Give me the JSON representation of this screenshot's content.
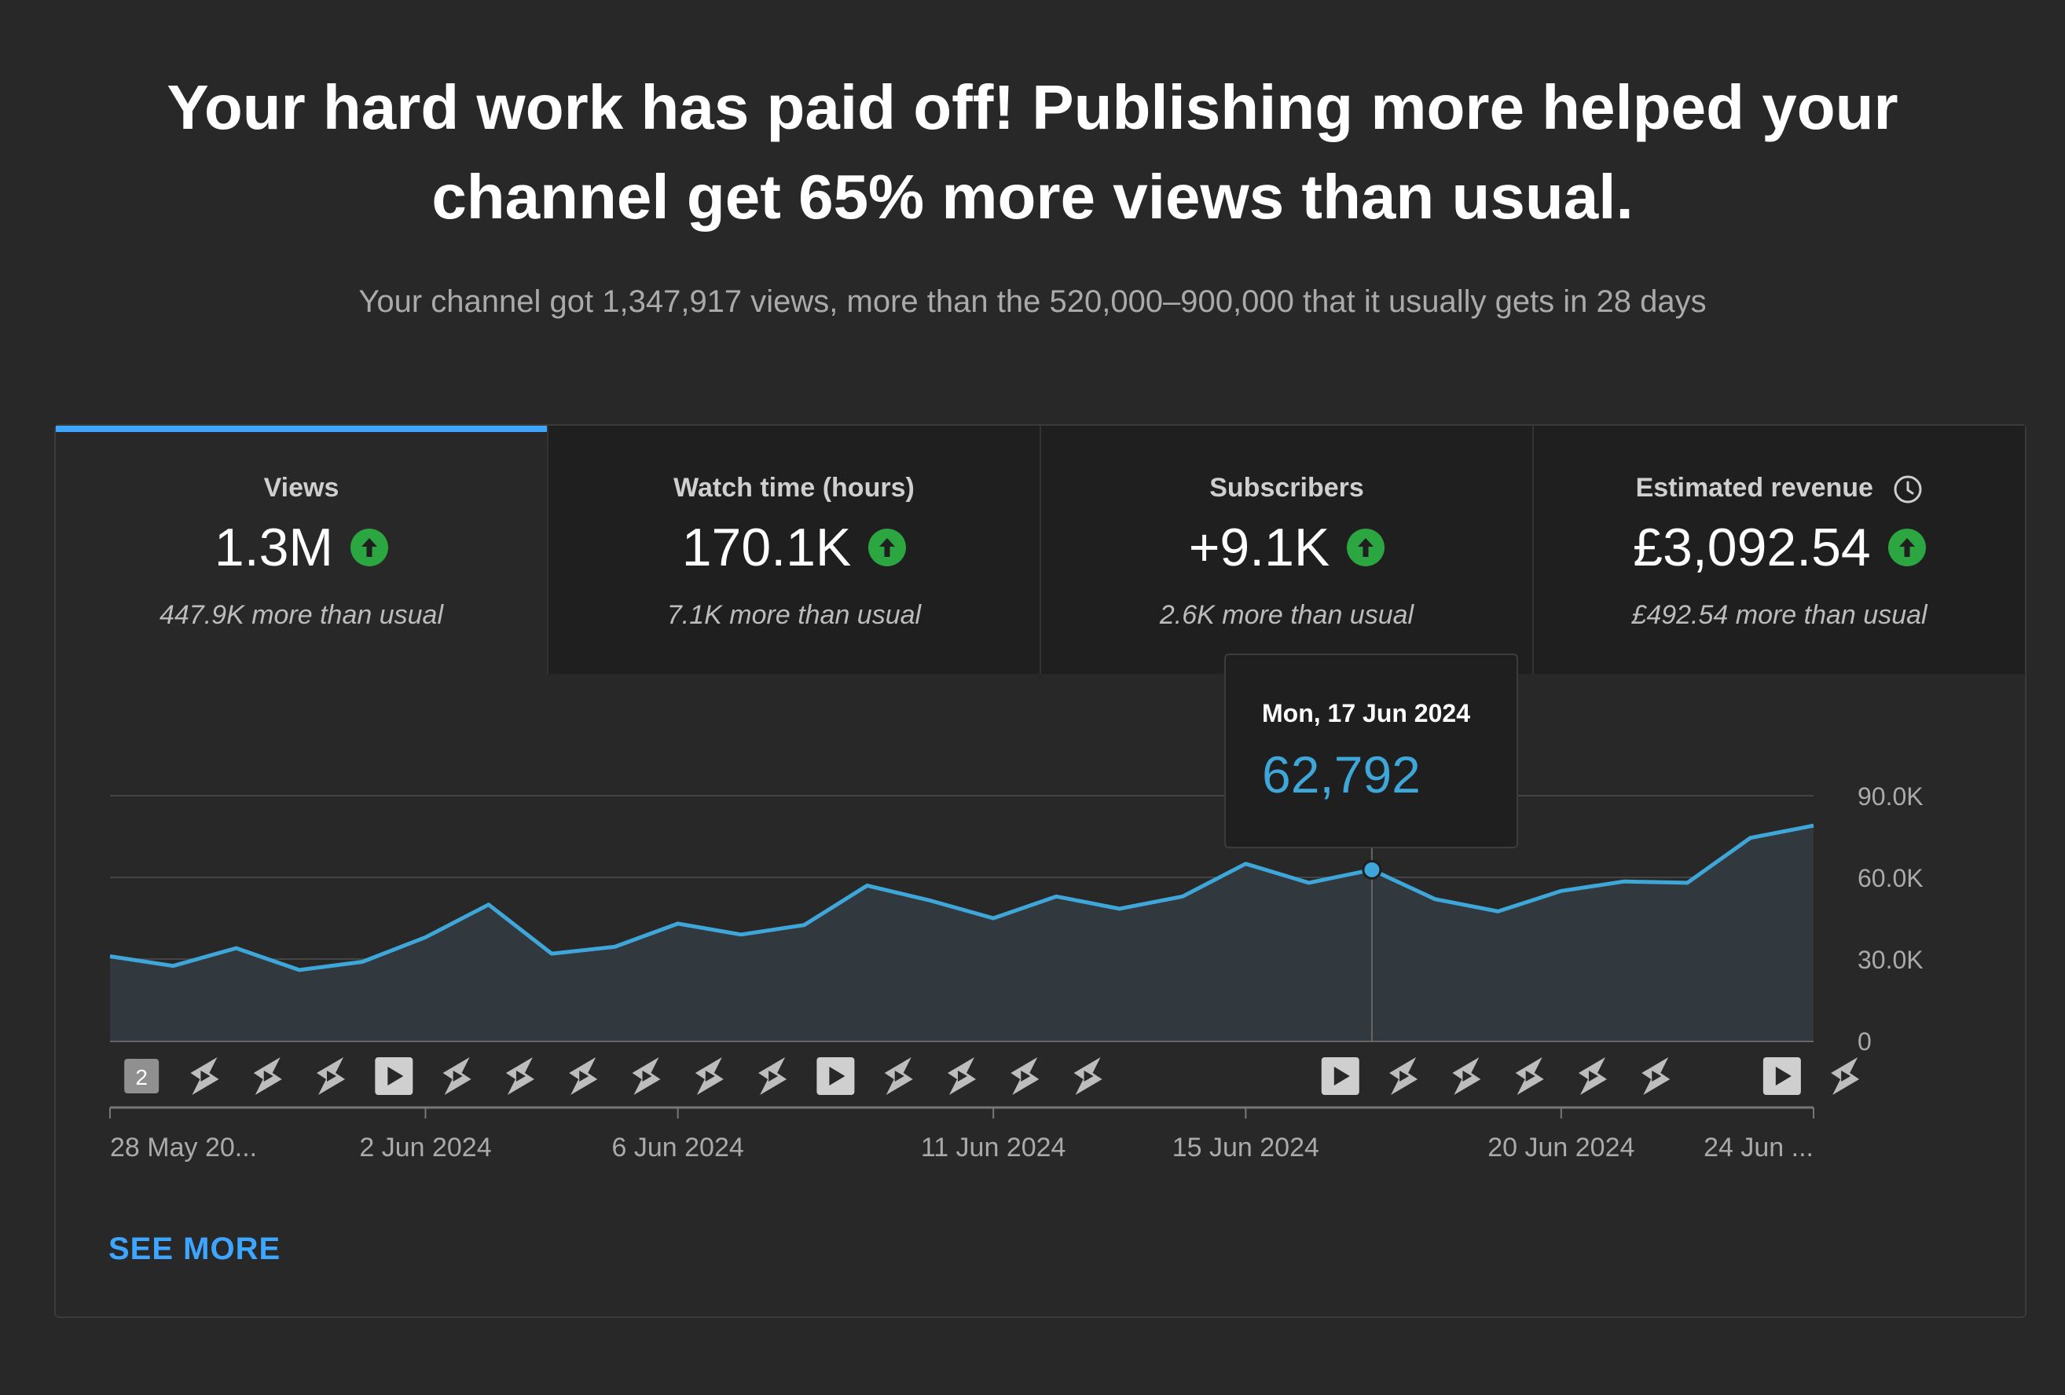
{
  "headline": {
    "line1": "Your hard work has paid off! Publishing more helped your",
    "line2": "channel get 65% more views than usual."
  },
  "subline": "Your channel got 1,347,917 views, more than the 520,000–900,000 that it usually gets in 28 days",
  "tabs": [
    {
      "label": "Views",
      "value": "1.3M",
      "delta": "447.9K more than usual",
      "active": true
    },
    {
      "label": "Watch time (hours)",
      "value": "170.1K",
      "delta": "7.1K more than usual",
      "active": false
    },
    {
      "label": "Subscribers",
      "value": "+9.1K",
      "delta": "2.6K more than usual",
      "active": false
    },
    {
      "label": "Estimated revenue",
      "value": "£3,092.54",
      "delta": "£492.54 more than usual",
      "active": false
    }
  ],
  "tooltip": {
    "date": "Mon, 17 Jun 2024",
    "value": "62,792"
  },
  "see_more": "SEE MORE",
  "colors": {
    "accent": "#3ea6ff",
    "line": "#3ea6d8",
    "up": "#2ba640",
    "background": "#282828"
  },
  "chart_data": {
    "type": "area",
    "x_tick_labels": [
      "28 May 20...",
      "2 Jun 2024",
      "6 Jun 2024",
      "11 Jun 2024",
      "15 Jun 2024",
      "20 Jun 2024",
      "24 Jun ..."
    ],
    "y_tick_labels": [
      "0",
      "30.0K",
      "60.0K",
      "90.0K"
    ],
    "ylim": [
      0,
      90000
    ],
    "x": [
      "28 May 2024",
      "29 May 2024",
      "30 May 2024",
      "31 May 2024",
      "1 Jun 2024",
      "2 Jun 2024",
      "3 Jun 2024",
      "4 Jun 2024",
      "5 Jun 2024",
      "6 Jun 2024",
      "7 Jun 2024",
      "8 Jun 2024",
      "9 Jun 2024",
      "10 Jun 2024",
      "11 Jun 2024",
      "12 Jun 2024",
      "13 Jun 2024",
      "14 Jun 2024",
      "15 Jun 2024",
      "16 Jun 2024",
      "17 Jun 2024",
      "18 Jun 2024",
      "19 Jun 2024",
      "20 Jun 2024",
      "21 Jun 2024",
      "22 Jun 2024",
      "23 Jun 2024",
      "24 Jun 2024"
    ],
    "series": [
      {
        "values": [
          31000,
          27500,
          34000,
          26000,
          29000,
          38000,
          50000,
          32000,
          34500,
          43000,
          39000,
          42500,
          57000,
          51500,
          45000,
          53000,
          48500,
          53000,
          65000,
          58000,
          62792,
          52000,
          47500,
          55000,
          58500,
          58000,
          74500,
          79000
        ]
      }
    ],
    "highlight": {
      "x": "17 Jun 2024",
      "value": 62792
    },
    "publish_markers": [
      {
        "x": "28 May 2024",
        "kind": "count",
        "label": "2"
      },
      {
        "x": "29 May 2024",
        "kind": "short"
      },
      {
        "x": "30 May 2024",
        "kind": "short"
      },
      {
        "x": "31 May 2024",
        "kind": "short"
      },
      {
        "x": "1 Jun 2024",
        "kind": "video"
      },
      {
        "x": "2 Jun 2024",
        "kind": "short"
      },
      {
        "x": "3 Jun 2024",
        "kind": "short"
      },
      {
        "x": "4 Jun 2024",
        "kind": "short"
      },
      {
        "x": "5 Jun 2024",
        "kind": "short"
      },
      {
        "x": "6 Jun 2024",
        "kind": "short"
      },
      {
        "x": "7 Jun 2024",
        "kind": "short"
      },
      {
        "x": "8 Jun 2024",
        "kind": "video"
      },
      {
        "x": "9 Jun 2024",
        "kind": "short"
      },
      {
        "x": "10 Jun 2024",
        "kind": "short"
      },
      {
        "x": "11 Jun 2024",
        "kind": "short"
      },
      {
        "x": "12 Jun 2024",
        "kind": "short"
      },
      {
        "x": "16 Jun 2024",
        "kind": "video"
      },
      {
        "x": "17 Jun 2024",
        "kind": "short"
      },
      {
        "x": "18 Jun 2024",
        "kind": "short"
      },
      {
        "x": "19 Jun 2024",
        "kind": "short"
      },
      {
        "x": "20 Jun 2024",
        "kind": "short"
      },
      {
        "x": "21 Jun 2024",
        "kind": "short"
      },
      {
        "x": "23 Jun 2024",
        "kind": "video"
      },
      {
        "x": "24 Jun 2024",
        "kind": "short"
      }
    ]
  }
}
